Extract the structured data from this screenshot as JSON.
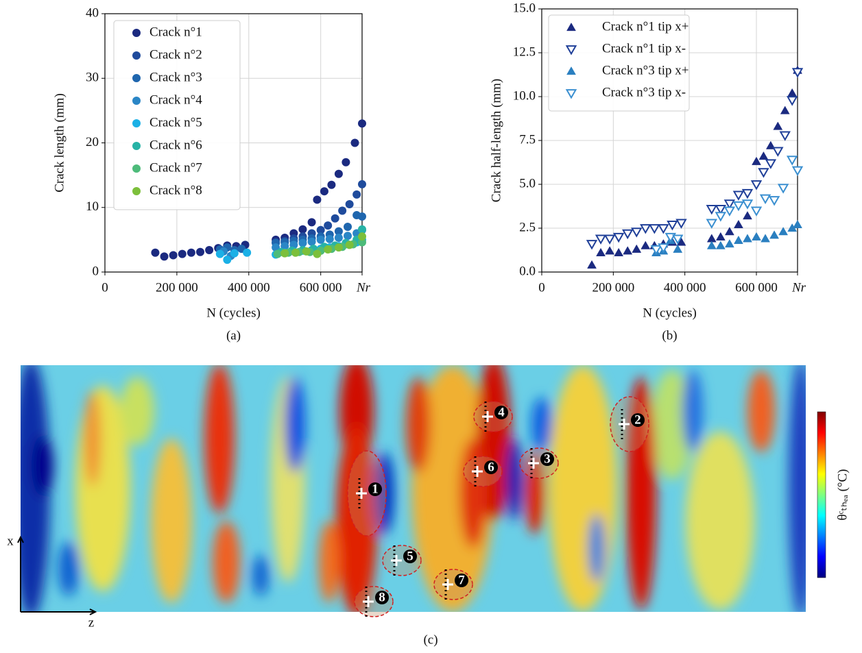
{
  "chart_data": [
    {
      "type": "scatter",
      "x_label": "N (cycles)",
      "y_label": "Crack length (mm)",
      "caption": "(a)",
      "xlim": [
        0,
        715000
      ],
      "ylim": [
        0,
        40
      ],
      "xticks": [
        0,
        {
          "value": 200000,
          "label": "200 000"
        },
        {
          "value": 400000,
          "label": "400 000"
        },
        {
          "value": 600000,
          "label": "600 000"
        },
        {
          "value": 715000,
          "label": "Nr"
        }
      ],
      "yticks": [
        0,
        10,
        20,
        30,
        40
      ],
      "grid": true,
      "legend": "upper left",
      "marker": "circle",
      "series": [
        {
          "name": "Crack n°1",
          "color": "#1b2a80",
          "x": [
            140000,
            165000,
            190000,
            215000,
            240000,
            265000,
            290000,
            315000,
            340000,
            365000,
            390000,
            475000,
            500000,
            525000,
            550000,
            575000,
            590000,
            610000,
            630000,
            650000,
            670000,
            695000,
            715000
          ],
          "values": [
            3,
            2.4,
            2.6,
            2.8,
            3,
            3.1,
            3.4,
            3.7,
            4.1,
            4,
            4.2,
            5,
            5.3,
            6,
            6.6,
            7.7,
            11.2,
            12.5,
            13.5,
            15.2,
            17,
            20,
            23
          ]
        },
        {
          "name": "Crack n°2",
          "color": "#1f4b9c",
          "x": [
            475000,
            500000,
            525000,
            550000,
            575000,
            600000,
            620000,
            640000,
            660000,
            680000,
            700000,
            715000
          ],
          "values": [
            4.6,
            4.8,
            5.2,
            5.5,
            6,
            6.5,
            7.2,
            8.3,
            9.5,
            10.5,
            12,
            13.6
          ]
        },
        {
          "name": "Crack n°3",
          "color": "#1f66ae",
          "x": [
            320000,
            340000,
            360000,
            380000,
            475000,
            500000,
            525000,
            550000,
            575000,
            600000,
            625000,
            650000,
            675000,
            700000,
            715000
          ],
          "values": [
            3.5,
            3.8,
            3.4,
            3.6,
            4.5,
            4.6,
            4.8,
            5,
            5.2,
            5.5,
            5.8,
            6.3,
            7,
            8.8,
            8.6
          ]
        },
        {
          "name": "Crack n°4",
          "color": "#2a86c6",
          "x": [
            330000,
            350000,
            475000,
            500000,
            525000,
            550000,
            575000,
            600000,
            625000,
            650000,
            675000,
            700000,
            715000
          ],
          "values": [
            3.2,
            2.5,
            3.8,
            4,
            4.2,
            4.5,
            4.7,
            5,
            5.1,
            5.3,
            5.6,
            6,
            6.5
          ]
        },
        {
          "name": "Crack n°5",
          "color": "#1bb0e6",
          "x": [
            320000,
            340000,
            360000,
            395000,
            475000,
            500000,
            525000,
            550000,
            575000,
            600000,
            625000,
            650000,
            675000,
            700000,
            715000
          ],
          "values": [
            2.8,
            1.9,
            2.9,
            3,
            2.7,
            3,
            3.2,
            3.3,
            3.4,
            3.6,
            3.8,
            4,
            4.3,
            4.6,
            5
          ]
        },
        {
          "name": "Crack n°6",
          "color": "#27b3a6",
          "x": [
            490000,
            520000,
            550000,
            580000,
            610000,
            640000,
            670000,
            700000,
            715000
          ],
          "values": [
            3.1,
            3.3,
            3.4,
            3.6,
            3.9,
            4.1,
            4.5,
            5,
            6.6
          ]
        },
        {
          "name": "Crack n°7",
          "color": "#4dbb7a",
          "x": [
            480000,
            510000,
            540000,
            570000,
            600000,
            630000,
            660000,
            690000,
            715000
          ],
          "values": [
            2.8,
            3,
            3.1,
            3.1,
            3.3,
            3.6,
            3.9,
            4.3,
            4.6
          ]
        },
        {
          "name": "Crack n°8",
          "color": "#7cbf3b",
          "x": [
            500000,
            530000,
            560000,
            590000,
            620000,
            650000,
            680000,
            715000
          ],
          "values": [
            2.9,
            3,
            3.2,
            2.8,
            3.5,
            3.8,
            4.2,
            5.5
          ]
        }
      ]
    },
    {
      "type": "scatter",
      "x_label": "N (cycles)",
      "y_label": "Crack half-length (mm)",
      "caption": "(b)",
      "xlim": [
        0,
        715000
      ],
      "ylim": [
        0,
        15
      ],
      "xticks": [
        0,
        {
          "value": 200000,
          "label": "200 000"
        },
        {
          "value": 400000,
          "label": "400 000"
        },
        {
          "value": 600000,
          "label": "600 000"
        },
        {
          "value": 715000,
          "label": "Nr"
        }
      ],
      "yticks": [
        {
          "value": 0,
          "label": "0.0"
        },
        2.5,
        {
          "value": 5,
          "label": "5.0"
        },
        7.5,
        {
          "value": 10,
          "label": "10.0"
        },
        12.5,
        {
          "value": 15,
          "label": "15.0"
        }
      ],
      "grid": true,
      "legend": "upper left",
      "series": [
        {
          "name": "Crack n°1 tip x+",
          "color": "#1b2a80",
          "marker": "triangle-up",
          "filled": true,
          "x": [
            140000,
            165000,
            190000,
            215000,
            240000,
            265000,
            290000,
            315000,
            340000,
            365000,
            390000,
            475000,
            500000,
            525000,
            550000,
            575000,
            600000,
            620000,
            640000,
            660000,
            680000,
            700000,
            715000
          ],
          "values": [
            0.4,
            1.1,
            1.2,
            1.1,
            1.2,
            1.3,
            1.5,
            1.5,
            1.6,
            1.7,
            1.7,
            1.9,
            2,
            2.3,
            2.7,
            3.2,
            6.3,
            6.6,
            7.2,
            8.3,
            9.2,
            10.2,
            11.5
          ]
        },
        {
          "name": "Crack n°1 tip x-",
          "color": "#1f3f98",
          "marker": "triangle-down",
          "filled": false,
          "x": [
            140000,
            165000,
            190000,
            215000,
            240000,
            265000,
            290000,
            315000,
            340000,
            365000,
            390000,
            475000,
            500000,
            525000,
            550000,
            575000,
            600000,
            620000,
            640000,
            660000,
            680000,
            700000,
            715000
          ],
          "values": [
            1.6,
            1.9,
            1.9,
            2,
            2.2,
            2.3,
            2.5,
            2.5,
            2.5,
            2.7,
            2.8,
            3.6,
            3.6,
            3.9,
            4.4,
            4.5,
            5,
            5.7,
            6.2,
            6.9,
            7.8,
            9.8,
            11.4
          ]
        },
        {
          "name": "Crack n°3 tip x+",
          "color": "#2a7fc0",
          "marker": "triangle-up",
          "filled": true,
          "x": [
            320000,
            340000,
            360000,
            380000,
            475000,
            500000,
            525000,
            550000,
            575000,
            600000,
            625000,
            650000,
            675000,
            700000,
            715000
          ],
          "values": [
            1.1,
            1.2,
            1.8,
            1.3,
            1.5,
            1.5,
            1.6,
            1.8,
            1.9,
            2,
            1.9,
            2.1,
            2.3,
            2.5,
            2.7
          ]
        },
        {
          "name": "Crack n°3 tip x-",
          "color": "#3a8fd0",
          "marker": "triangle-down",
          "filled": false,
          "x": [
            320000,
            340000,
            360000,
            380000,
            475000,
            500000,
            525000,
            550000,
            575000,
            600000,
            625000,
            650000,
            675000,
            700000,
            715000
          ],
          "values": [
            1.3,
            1.4,
            2,
            1.9,
            2.8,
            3.2,
            3.5,
            3.8,
            3.9,
            3.5,
            4.2,
            4.1,
            4.8,
            6.4,
            5.8
          ]
        }
      ]
    }
  ],
  "heatmap": {
    "crack_labels": [
      "1",
      "2",
      "3",
      "4",
      "5",
      "6",
      "7",
      "8"
    ],
    "colorbar_label": "θᶜₜₕₑₐ (°C)",
    "x_axis": "x",
    "z_axis": "z",
    "caption": "(c)"
  }
}
